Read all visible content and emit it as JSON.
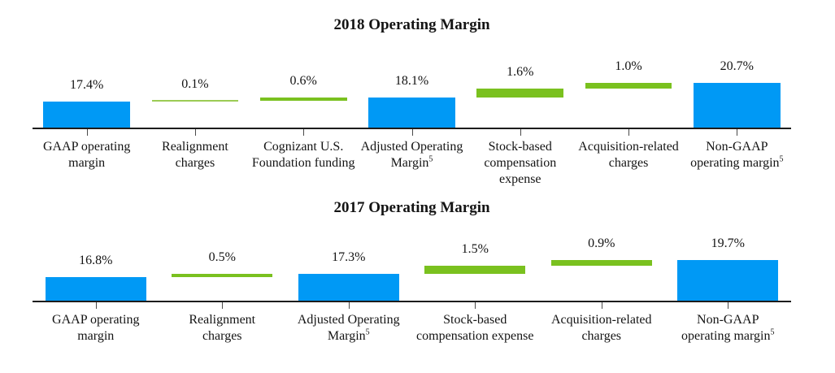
{
  "style": {
    "background": "#ffffff",
    "axis_color": "#1c1c1c",
    "tick_color": "#4a4a4a",
    "text_color": "#141414",
    "total_bar_color": "#0099f5",
    "adjustment_bar_color": "#7ac11f",
    "thin_adjustment_bar_color": "#9ccb55"
  },
  "chart_data": [
    {
      "type": "bar",
      "subtype": "waterfall",
      "title": "2018 Operating Margin",
      "unit": "%",
      "ylim": [
        12.8,
        21.8
      ],
      "grid": false,
      "legend": null,
      "categories": [
        "GAAP operating margin",
        "Realignment charges",
        "Cognizant U.S. Foundation funding",
        "Adjusted Operating Margin",
        "Stock-based compensation expense",
        "Acquisition-related charges",
        "Non-GAAP operating margin"
      ],
      "bars": [
        {
          "category": "GAAP operating margin",
          "category_lines": [
            "GAAP operating",
            "margin"
          ],
          "superscript": "",
          "value_label": "17.4%",
          "value": 17.4,
          "start": 0.0,
          "end": 17.4,
          "role": "total"
        },
        {
          "category": "Realignment charges",
          "category_lines": [
            "Realignment",
            "charges"
          ],
          "superscript": "",
          "value_label": "0.1%",
          "value": 0.1,
          "start": 17.4,
          "end": 17.5,
          "role": "adjustment"
        },
        {
          "category": "Cognizant U.S. Foundation funding",
          "category_lines": [
            "Cognizant U.S.",
            "Foundation funding"
          ],
          "superscript": "",
          "value_label": "0.6%",
          "value": 0.6,
          "start": 17.5,
          "end": 18.1,
          "role": "adjustment"
        },
        {
          "category": "Adjusted Operating Margin",
          "category_lines": [
            "Adjusted Operating",
            "Margin"
          ],
          "superscript": "5",
          "value_label": "18.1%",
          "value": 18.1,
          "start": 0.0,
          "end": 18.1,
          "role": "total"
        },
        {
          "category": "Stock-based compensation expense",
          "category_lines": [
            "Stock-based",
            "compensation",
            "expense"
          ],
          "superscript": "",
          "value_label": "1.6%",
          "value": 1.6,
          "start": 18.1,
          "end": 19.7,
          "role": "adjustment"
        },
        {
          "category": "Acquisition-related charges",
          "category_lines": [
            "Acquisition-related",
            "charges"
          ],
          "superscript": "",
          "value_label": "1.0%",
          "value": 1.0,
          "start": 19.7,
          "end": 20.7,
          "role": "adjustment"
        },
        {
          "category": "Non-GAAP operating margin",
          "category_lines": [
            "Non-GAAP",
            "operating margin"
          ],
          "superscript": "5",
          "value_label": "20.7%",
          "value": 20.7,
          "start": 0.0,
          "end": 20.7,
          "role": "total"
        }
      ]
    },
    {
      "type": "bar",
      "subtype": "waterfall",
      "title": "2017 Operating Margin",
      "unit": "%",
      "ylim": [
        12.6,
        20.9
      ],
      "grid": false,
      "legend": null,
      "categories": [
        "GAAP operating margin",
        "Realignment charges",
        "Adjusted Operating Margin",
        "Stock-based compensation expense",
        "Acquisition-related charges",
        "Non-GAAP operating margin"
      ],
      "bars": [
        {
          "category": "GAAP operating margin",
          "category_lines": [
            "GAAP operating",
            "margin"
          ],
          "superscript": "",
          "value_label": "16.8%",
          "value": 16.8,
          "start": 0.0,
          "end": 16.8,
          "role": "total"
        },
        {
          "category": "Realignment charges",
          "category_lines": [
            "Realignment",
            "charges"
          ],
          "superscript": "",
          "value_label": "0.5%",
          "value": 0.5,
          "start": 16.8,
          "end": 17.3,
          "role": "adjustment"
        },
        {
          "category": "Adjusted Operating Margin",
          "category_lines": [
            "Adjusted Operating",
            "Margin"
          ],
          "superscript": "5",
          "value_label": "17.3%",
          "value": 17.3,
          "start": 0.0,
          "end": 17.3,
          "role": "total"
        },
        {
          "category": "Stock-based compensation expense",
          "category_lines": [
            "Stock-based",
            "compensation expense"
          ],
          "superscript": "",
          "value_label": "1.5%",
          "value": 1.5,
          "start": 17.3,
          "end": 18.8,
          "role": "adjustment"
        },
        {
          "category": "Acquisition-related charges",
          "category_lines": [
            "Acquisition-related",
            "charges"
          ],
          "superscript": "",
          "value_label": "0.9%",
          "value": 0.9,
          "start": 18.8,
          "end": 19.7,
          "role": "adjustment"
        },
        {
          "category": "Non-GAAP operating margin",
          "category_lines": [
            "Non-GAAP",
            "operating margin"
          ],
          "superscript": "5",
          "value_label": "19.7%",
          "value": 19.7,
          "start": 0.0,
          "end": 19.7,
          "role": "total"
        }
      ]
    }
  ]
}
